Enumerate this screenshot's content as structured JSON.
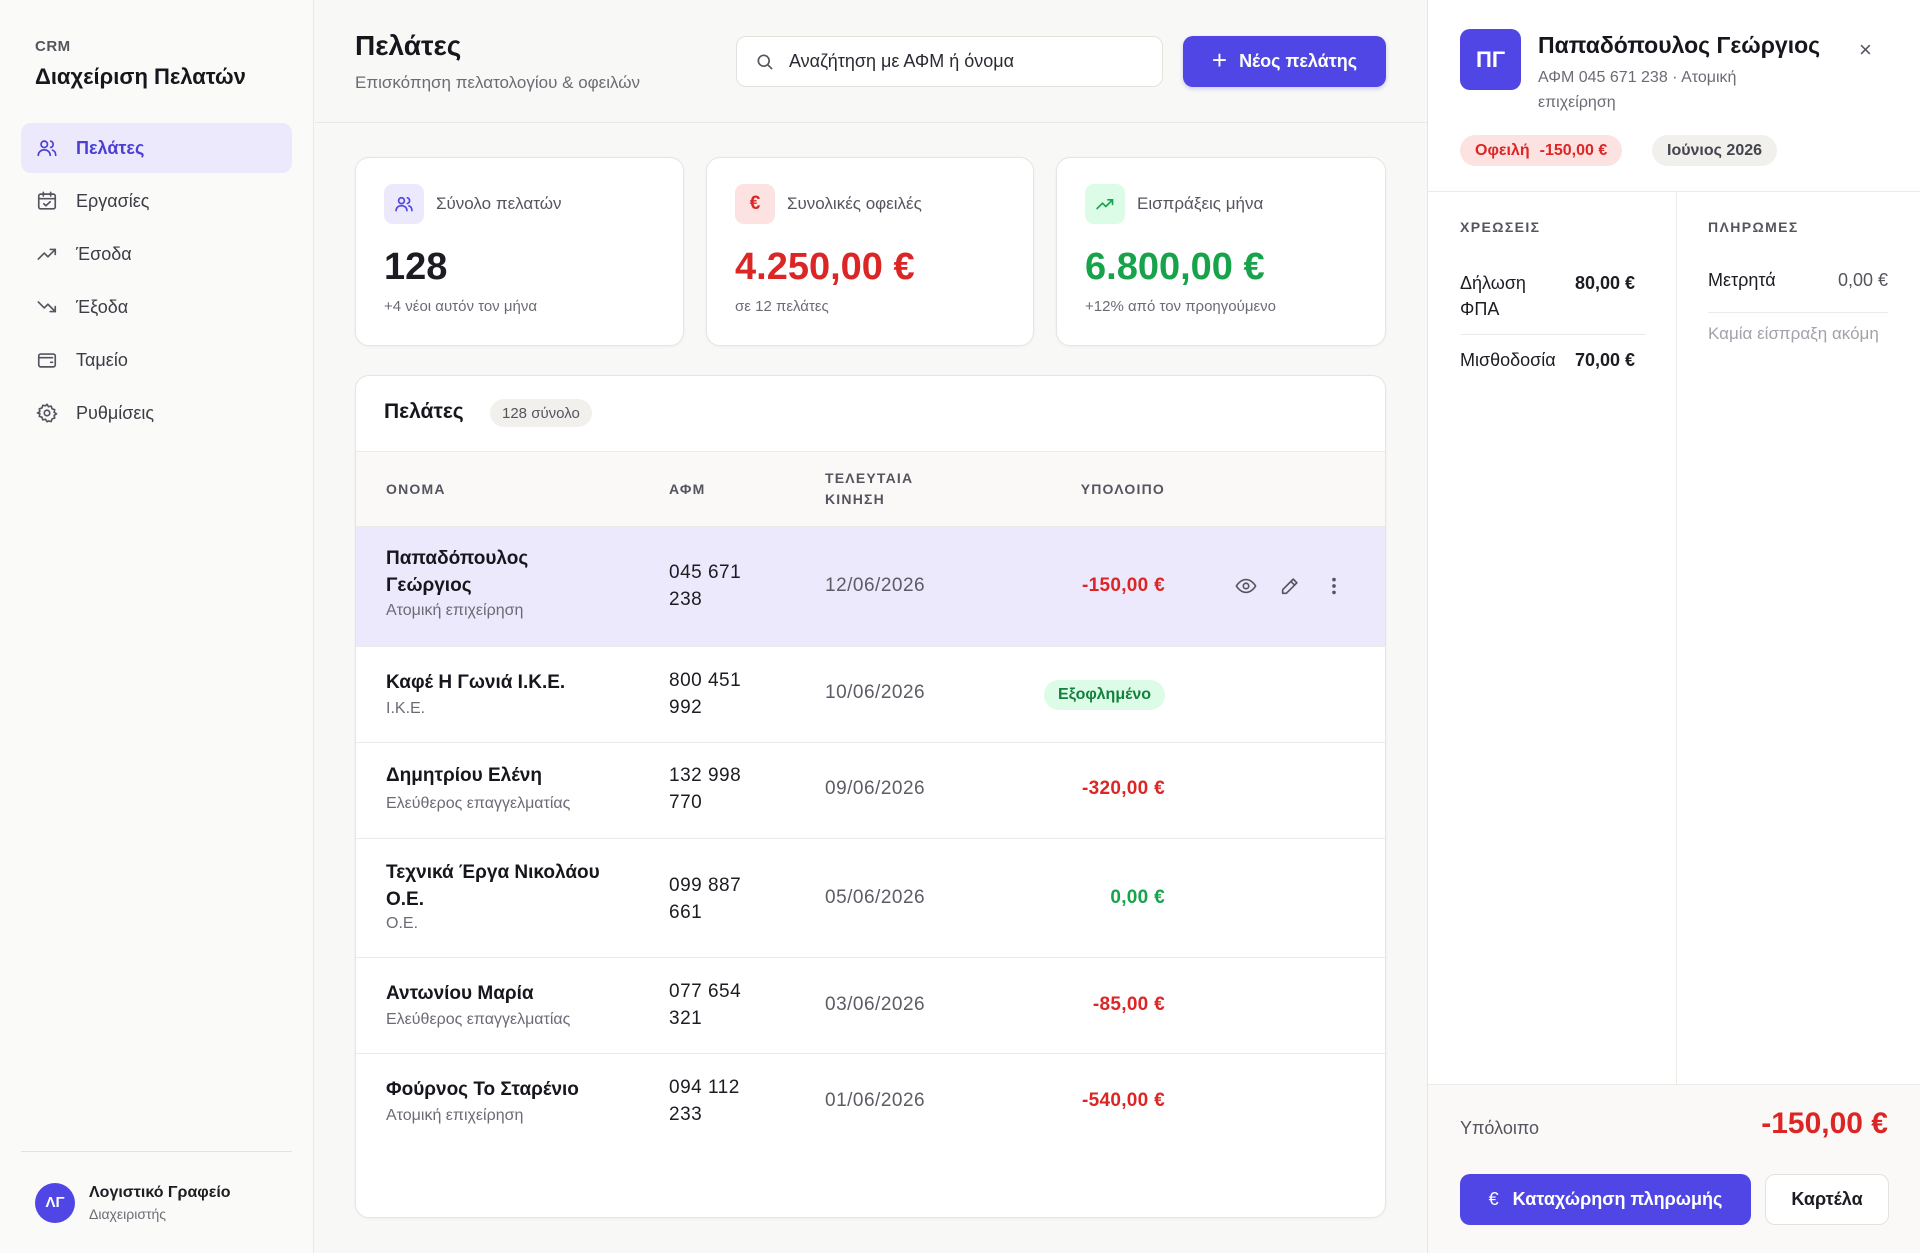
{
  "sidebar": {
    "brand_tag": "CRM",
    "brand_title": "Διαχείριση Πελατών",
    "items": [
      {
        "label": "Πελάτες",
        "icon": "users-icon",
        "active": true
      },
      {
        "label": "Εργασίες",
        "icon": "calendar-check-icon"
      },
      {
        "label": "Έσοδα",
        "icon": "trending-up-icon"
      },
      {
        "label": "Έξοδα",
        "icon": "trending-down-icon"
      },
      {
        "label": "Ταμείο",
        "icon": "wallet-icon"
      },
      {
        "label": "Ρυθμίσεις",
        "icon": "gear-icon"
      }
    ],
    "user": {
      "initials": "ΛΓ",
      "name": "Λογιστικό Γραφείο",
      "role": "Διαχειριστής"
    }
  },
  "header": {
    "title": "Πελάτες",
    "subtitle": "Επισκόπηση πελατολογίου & οφειλών",
    "search_placeholder": "Αναζήτηση με ΑΦΜ ή όνομα",
    "new_button": "Νέος πελάτης"
  },
  "stats": [
    {
      "label": "Σύνολο πελατών",
      "value": "128",
      "note": "+4 νέοι αυτόν τον μήνα",
      "icon": "users-icon",
      "color": "#1c1c22",
      "icon_bg": "#ebe9fb",
      "icon_color": "#4f46e5"
    },
    {
      "label": "Συνολικές οφειλές",
      "value": "4.250,00 €",
      "note": "σε 12 πελάτες",
      "icon": "euro-icon",
      "color": "#dc2626",
      "icon_bg": "#fde2e2",
      "icon_color": "#dc2626"
    },
    {
      "label": "Εισπράξεις μήνα",
      "value": "6.800,00 €",
      "note": "+12% από τον προηγούμενο",
      "icon": "trending-up-icon",
      "color": "#16a34a",
      "icon_bg": "#dcfce7",
      "icon_color": "#16a34a"
    }
  ],
  "table": {
    "title": "Πελάτες",
    "count": "128 σύνολο",
    "columns": {
      "name": "ΟΝΟΜΑ",
      "afm": "ΑΦΜ",
      "last_activity": "ΤΕΛΕΥΤΑΙΑ ΚΙΝΗΣΗ",
      "balance": "ΥΠΟΛΟΙΠΟ"
    },
    "rows": [
      {
        "name": "Παπαδόπουλος Γεώργιος",
        "type": "Ατομική επιχείρηση",
        "afm": "045 671 238",
        "date": "12/06/2026",
        "balance": "-150,00 €",
        "status": "negative",
        "selected": true
      },
      {
        "name": "Καφέ Η Γωνιά Ι.Κ.Ε.",
        "type": "Ι.Κ.Ε.",
        "afm": "800 451 992",
        "date": "10/06/2026",
        "balance": "Εξοφλημένο",
        "status": "paid"
      },
      {
        "name": "Δημητρίου Ελένη",
        "type": "Ελεύθερος επαγγελματίας",
        "afm": "132 998 770",
        "date": "09/06/2026",
        "balance": "-320,00 €",
        "status": "negative"
      },
      {
        "name": "Τεχνικά Έργα Νικολάου Ο.Ε.",
        "type": "Ο.Ε.",
        "afm": "099 887 661",
        "date": "05/06/2026",
        "balance": "0,00 €",
        "status": "zero"
      },
      {
        "name": "Αντωνίου Μαρία",
        "type": "Ελεύθερος επαγγελματίας",
        "afm": "077 654 321",
        "date": "03/06/2026",
        "balance": "-85,00 €",
        "status": "negative"
      },
      {
        "name": "Φούρνος Το Σταρένιο",
        "type": "Ατομική επιχείρηση",
        "afm": "094 112 233",
        "date": "01/06/2026",
        "balance": "-540,00 €",
        "status": "negative"
      }
    ]
  },
  "panel": {
    "initials": "ΠΓ",
    "name": "Παπαδόπουλος Γεώργιος",
    "subtitle": "ΑΦΜ 045 671 238 · Ατομική επιχείρηση",
    "debt_label": "Οφειλή",
    "debt_amount": "-150,00 €",
    "month": "Ιούνιος 2026",
    "charges_title": "ΧΡΕΩΣΕΙΣ",
    "charges": [
      {
        "label": "Δήλωση ΦΠΑ",
        "amount": "80,00 €"
      },
      {
        "label": "Μισθοδοσία",
        "amount": "70,00 €"
      }
    ],
    "payments_title": "ΠΛΗΡΩΜΕΣ",
    "payments": [
      {
        "label": "Μετρητά",
        "amount": "0,00 €"
      }
    ],
    "payments_empty": "Καμία είσπραξη ακόμη",
    "balance_label": "Υπόλοιπο",
    "balance_value": "-150,00 €",
    "pay_button": "Καταχώρηση πληρωμής",
    "card_button": "Καρτέλα"
  }
}
